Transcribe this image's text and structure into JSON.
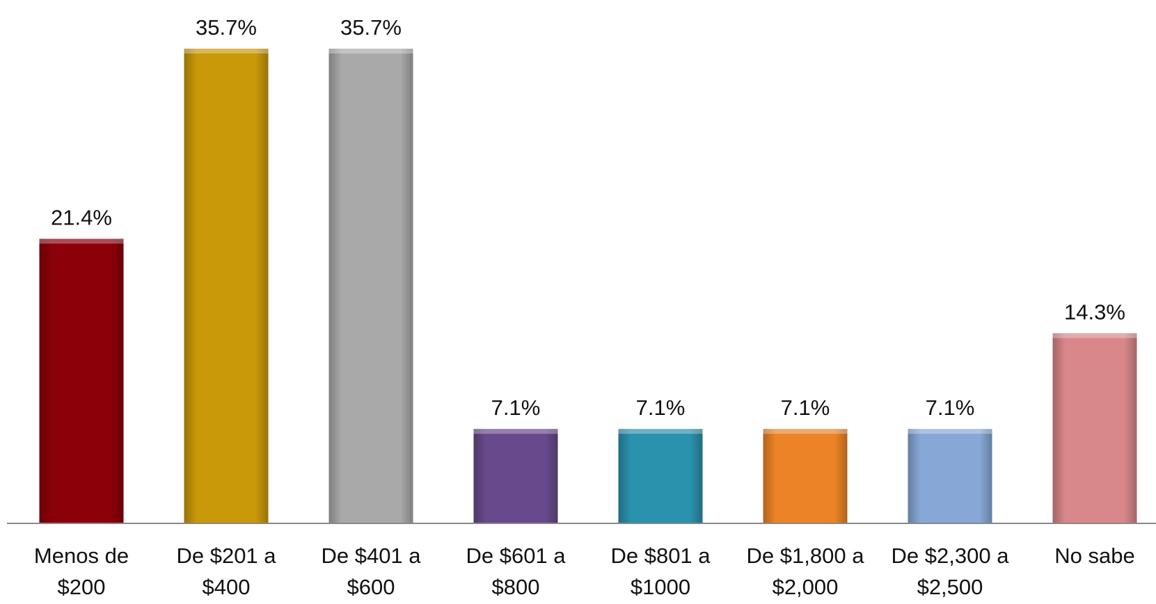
{
  "chart_data": {
    "type": "bar",
    "categories": [
      "Menos de $200",
      "De $201 a $400",
      "De $401 a $600",
      "De $601 a $800",
      "De $801 a $1000",
      "De $1,800 a $2,000",
      "De $2,300 a $2,500",
      "No sabe"
    ],
    "values": [
      21.4,
      35.7,
      35.7,
      7.1,
      7.1,
      7.1,
      7.1,
      14.3
    ],
    "value_labels": [
      "21.4%",
      "35.7%",
      "35.7%",
      "7.1%",
      "7.1%",
      "7.1%",
      "7.1%",
      "14.3%"
    ],
    "colors": [
      "#8b0009",
      "#c9990a",
      "#a9a9a9",
      "#684a8c",
      "#2a92ac",
      "#ec8427",
      "#87a8d6",
      "#d8878a"
    ],
    "ylim": [
      0,
      38
    ]
  }
}
